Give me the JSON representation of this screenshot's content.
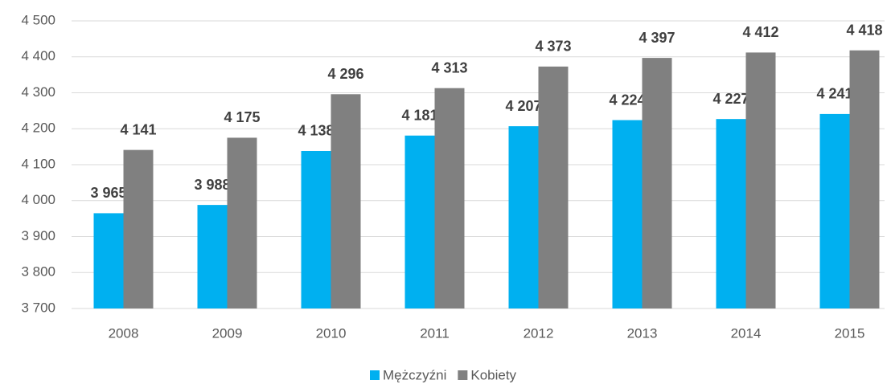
{
  "chart_data": {
    "type": "bar",
    "categories": [
      "2008",
      "2009",
      "2010",
      "2011",
      "2012",
      "2013",
      "2014",
      "2015"
    ],
    "series": [
      {
        "name": "Mężczyźni",
        "color": "#00b0f0",
        "values": [
          3965,
          3988,
          4138,
          4181,
          4207,
          4224,
          4227,
          4241
        ],
        "value_labels": [
          "3 965",
          "3 988",
          "4 138",
          "4 181",
          "4 207",
          "4 224",
          "4 227",
          "4 241"
        ]
      },
      {
        "name": "Kobiety",
        "color": "#808080",
        "values": [
          4141,
          4175,
          4296,
          4313,
          4373,
          4397,
          4412,
          4418
        ],
        "value_labels": [
          "4 141",
          "4 175",
          "4 296",
          "4 313",
          "4 373",
          "4 397",
          "4 412",
          "4 418"
        ]
      }
    ],
    "ylim": [
      3700,
      4500
    ],
    "yticks": [
      {
        "value": 3700,
        "label": "3 700"
      },
      {
        "value": 3800,
        "label": "3 800"
      },
      {
        "value": 3900,
        "label": "3 900"
      },
      {
        "value": 4000,
        "label": "4 000"
      },
      {
        "value": 4100,
        "label": "4 100"
      },
      {
        "value": 4200,
        "label": "4 200"
      },
      {
        "value": 4300,
        "label": "4 300"
      },
      {
        "value": 4400,
        "label": "4 400"
      },
      {
        "value": 4500,
        "label": "4 500"
      }
    ],
    "grid": true,
    "legend": "bottom"
  }
}
